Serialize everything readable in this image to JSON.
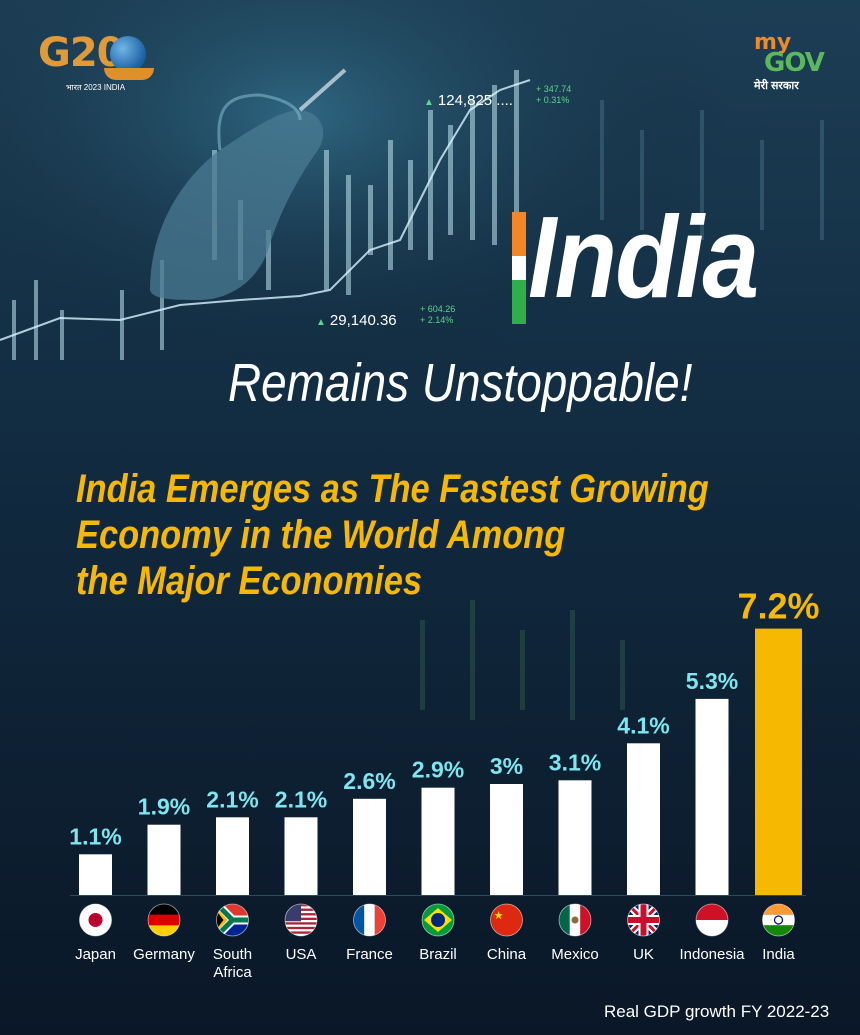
{
  "g20": {
    "text": "G20",
    "subtitle": "भारत 2023 INDIA"
  },
  "mygov": {
    "my": "my",
    "gov": "GOV",
    "tagline": "मेरी सरकार"
  },
  "tickers": {
    "t1": "124,825 ....",
    "t1_change": "+ 347.74",
    "t1_pct": "+ 0.31%",
    "t2": "29,140.36",
    "t2_change": "+ 604.26",
    "t2_pct": "+ 2.14%"
  },
  "title": {
    "india": "India",
    "subtitle": "Remains Unstoppable!"
  },
  "headline": {
    "line1": "India Emerges as The Fastest Growing",
    "line2": "Economy in the World Among",
    "line3": "the Major Economies"
  },
  "chart_data": {
    "type": "bar",
    "categories": [
      "Japan",
      "Germany",
      "South Africa",
      "USA",
      "France",
      "Brazil",
      "China",
      "Mexico",
      "UK",
      "Indonesia",
      "India"
    ],
    "values": [
      1.1,
      1.9,
      2.1,
      2.1,
      2.6,
      2.9,
      3,
      3.1,
      4.1,
      5.3,
      7.2
    ],
    "labels": [
      "1.1%",
      "1.9%",
      "2.1%",
      "2.1%",
      "2.6%",
      "2.9%",
      "3%",
      "3.1%",
      "4.1%",
      "5.3%",
      "7.2%"
    ],
    "highlight": "India",
    "bar_color": "#ffffff",
    "highlight_color": "#f6b800",
    "label_color": "#7ee6f0",
    "highlight_label_color": "#f6b800",
    "flags": [
      "japan-flag-icon",
      "germany-flag-icon",
      "south-africa-flag-icon",
      "usa-flag-icon",
      "france-flag-icon",
      "brazil-flag-icon",
      "china-flag-icon",
      "mexico-flag-icon",
      "uk-flag-icon",
      "indonesia-flag-icon",
      "india-flag-icon"
    ]
  },
  "footnote": "Real GDP growth FY 2022-23"
}
